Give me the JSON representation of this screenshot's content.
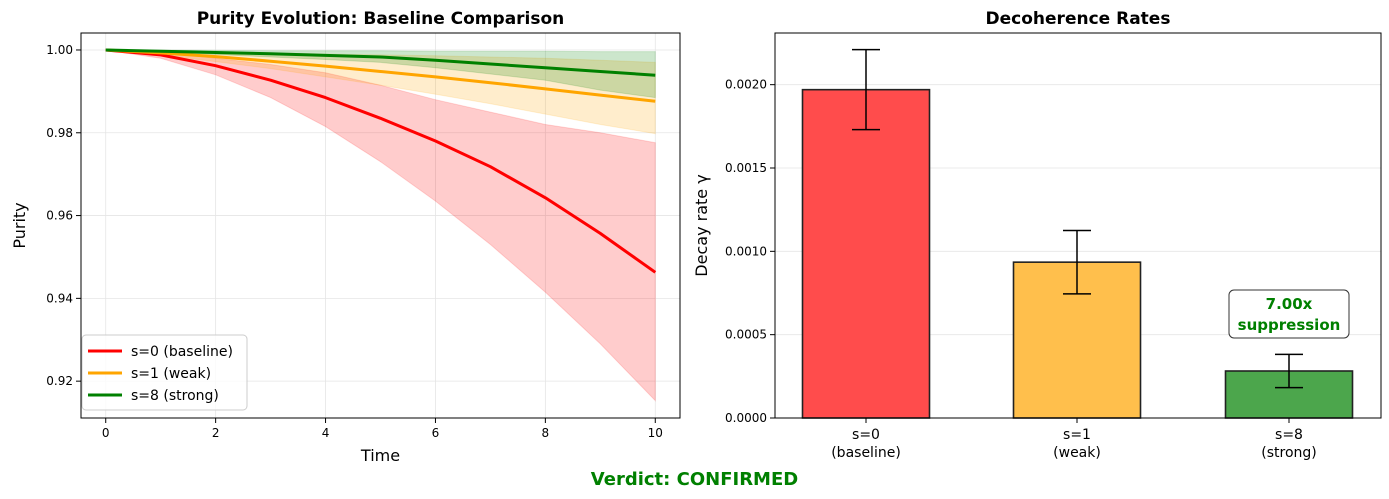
{
  "verdict": {
    "text": "Verdict: CONFIRMED",
    "color": "#008000"
  },
  "chart_data": [
    {
      "type": "line",
      "title": "Purity Evolution: Baseline Comparison",
      "xlabel": "Time",
      "ylabel": "Purity",
      "xlim": [
        -0.45,
        10.45
      ],
      "ylim": [
        0.9111,
        1.0041
      ],
      "xticks": [
        0,
        2,
        4,
        6,
        8,
        10
      ],
      "xtick_labels": [
        "0",
        "2",
        "4",
        "6",
        "8",
        "10"
      ],
      "yticks": [
        0.92,
        0.94,
        0.96,
        0.98,
        1.0
      ],
      "ytick_labels": [
        "0.92",
        "0.94",
        "0.96",
        "0.98",
        "1.00"
      ],
      "grid": true,
      "legend_position": "lower-left",
      "x": [
        0,
        1,
        2,
        3,
        4,
        5,
        6,
        7,
        8,
        9,
        10
      ],
      "series": [
        {
          "name": "s=0 (baseline)",
          "color": "#ff0000",
          "values": [
            1.0,
            0.9988,
            0.9962,
            0.9927,
            0.9885,
            0.9835,
            0.978,
            0.9718,
            0.9643,
            0.9557,
            0.9463
          ],
          "band_upper": [
            1.0,
            0.9995,
            0.998,
            0.9965,
            0.9945,
            0.9915,
            0.988,
            0.985,
            0.982,
            0.98,
            0.9776
          ],
          "band_lower": [
            1.0,
            0.998,
            0.994,
            0.9885,
            0.9815,
            0.973,
            0.9635,
            0.953,
            0.9415,
            0.929,
            0.9153
          ]
        },
        {
          "name": "s=1 (weak)",
          "color": "#ffa500",
          "values": [
            1.0,
            0.9993,
            0.9984,
            0.9973,
            0.9961,
            0.9948,
            0.9935,
            0.9921,
            0.9906,
            0.9891,
            0.9876
          ],
          "band_upper": [
            1.0,
            0.9997,
            0.9995,
            0.9993,
            0.999,
            0.9988,
            0.9986,
            0.9983,
            0.998,
            0.9975,
            0.997
          ],
          "band_lower": [
            1.0,
            0.9988,
            0.9972,
            0.9955,
            0.9935,
            0.9915,
            0.9893,
            0.987,
            0.9845,
            0.982,
            0.9798
          ]
        },
        {
          "name": "s=8 (strong)",
          "color": "#008000",
          "values": [
            1.0,
            0.9997,
            0.9994,
            0.9991,
            0.9987,
            0.9983,
            0.9975,
            0.9966,
            0.9957,
            0.9948,
            0.9939
          ],
          "band_upper": [
            1.0,
            1.0,
            0.9999,
            0.9998,
            0.9998,
            0.9998,
            0.9997,
            0.9997,
            0.9997,
            0.9996,
            0.9996
          ],
          "band_lower": [
            1.0,
            0.9995,
            0.9989,
            0.9983,
            0.9977,
            0.997,
            0.9957,
            0.9942,
            0.9927,
            0.9903,
            0.9885
          ]
        }
      ]
    },
    {
      "type": "bar",
      "title": "Decoherence Rates",
      "xlabel": "",
      "ylabel": "Decay rate γ",
      "ylim": [
        0,
        0.00231
      ],
      "yticks": [
        0,
        0.0005,
        0.001,
        0.0015,
        0.002
      ],
      "ytick_labels": [
        "0.0000",
        "0.0005",
        "0.0010",
        "0.0015",
        "0.0020"
      ],
      "grid": true,
      "categories": [
        {
          "line1": "s=0",
          "line2": "(baseline)"
        },
        {
          "line1": "s=1",
          "line2": "(weak)"
        },
        {
          "line1": "s=8",
          "line2": "(strong)"
        }
      ],
      "values": [
        0.00197,
        0.000935,
        0.000282
      ],
      "errors": [
        0.00024,
        0.00019,
        0.0001
      ],
      "colors": [
        "#ff4c4c",
        "#ffbf4c",
        "#4ca64c"
      ],
      "annotation": {
        "line1": "7.00x",
        "line2": "suppression",
        "color": "#008000",
        "bar_index": 2
      }
    }
  ]
}
